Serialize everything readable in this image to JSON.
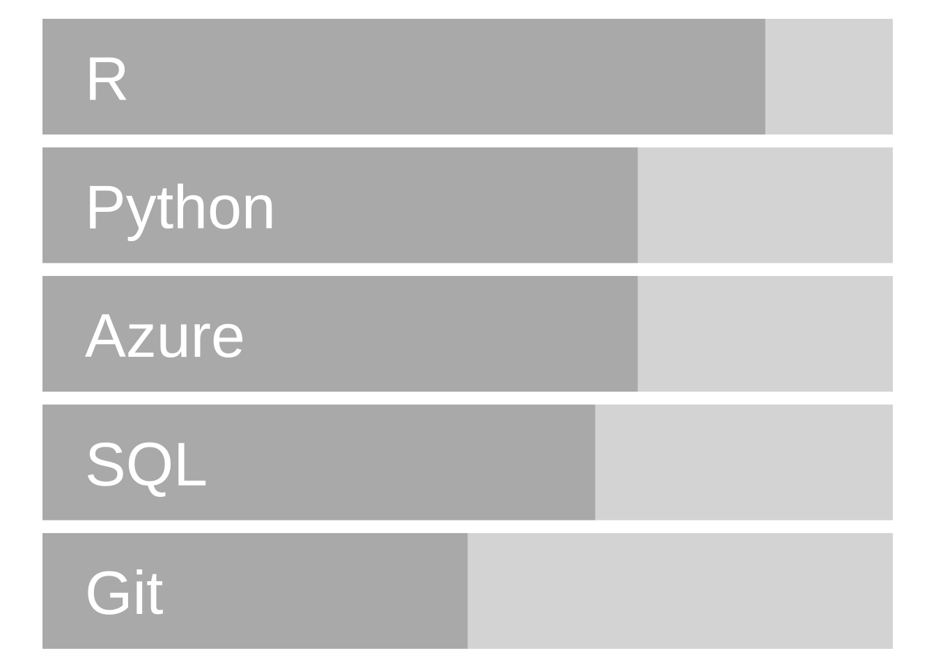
{
  "chart_data": {
    "type": "bar",
    "orientation": "horizontal",
    "categories": [
      "R",
      "Python",
      "Azure",
      "SQL",
      "Git"
    ],
    "values": [
      85,
      70,
      70,
      65,
      50
    ],
    "xlim": [
      0,
      100
    ],
    "colors": {
      "fill": "#a9a9a9",
      "track": "#d3d3d3",
      "label": "#ffffff"
    },
    "grid": false,
    "legend": "none"
  }
}
